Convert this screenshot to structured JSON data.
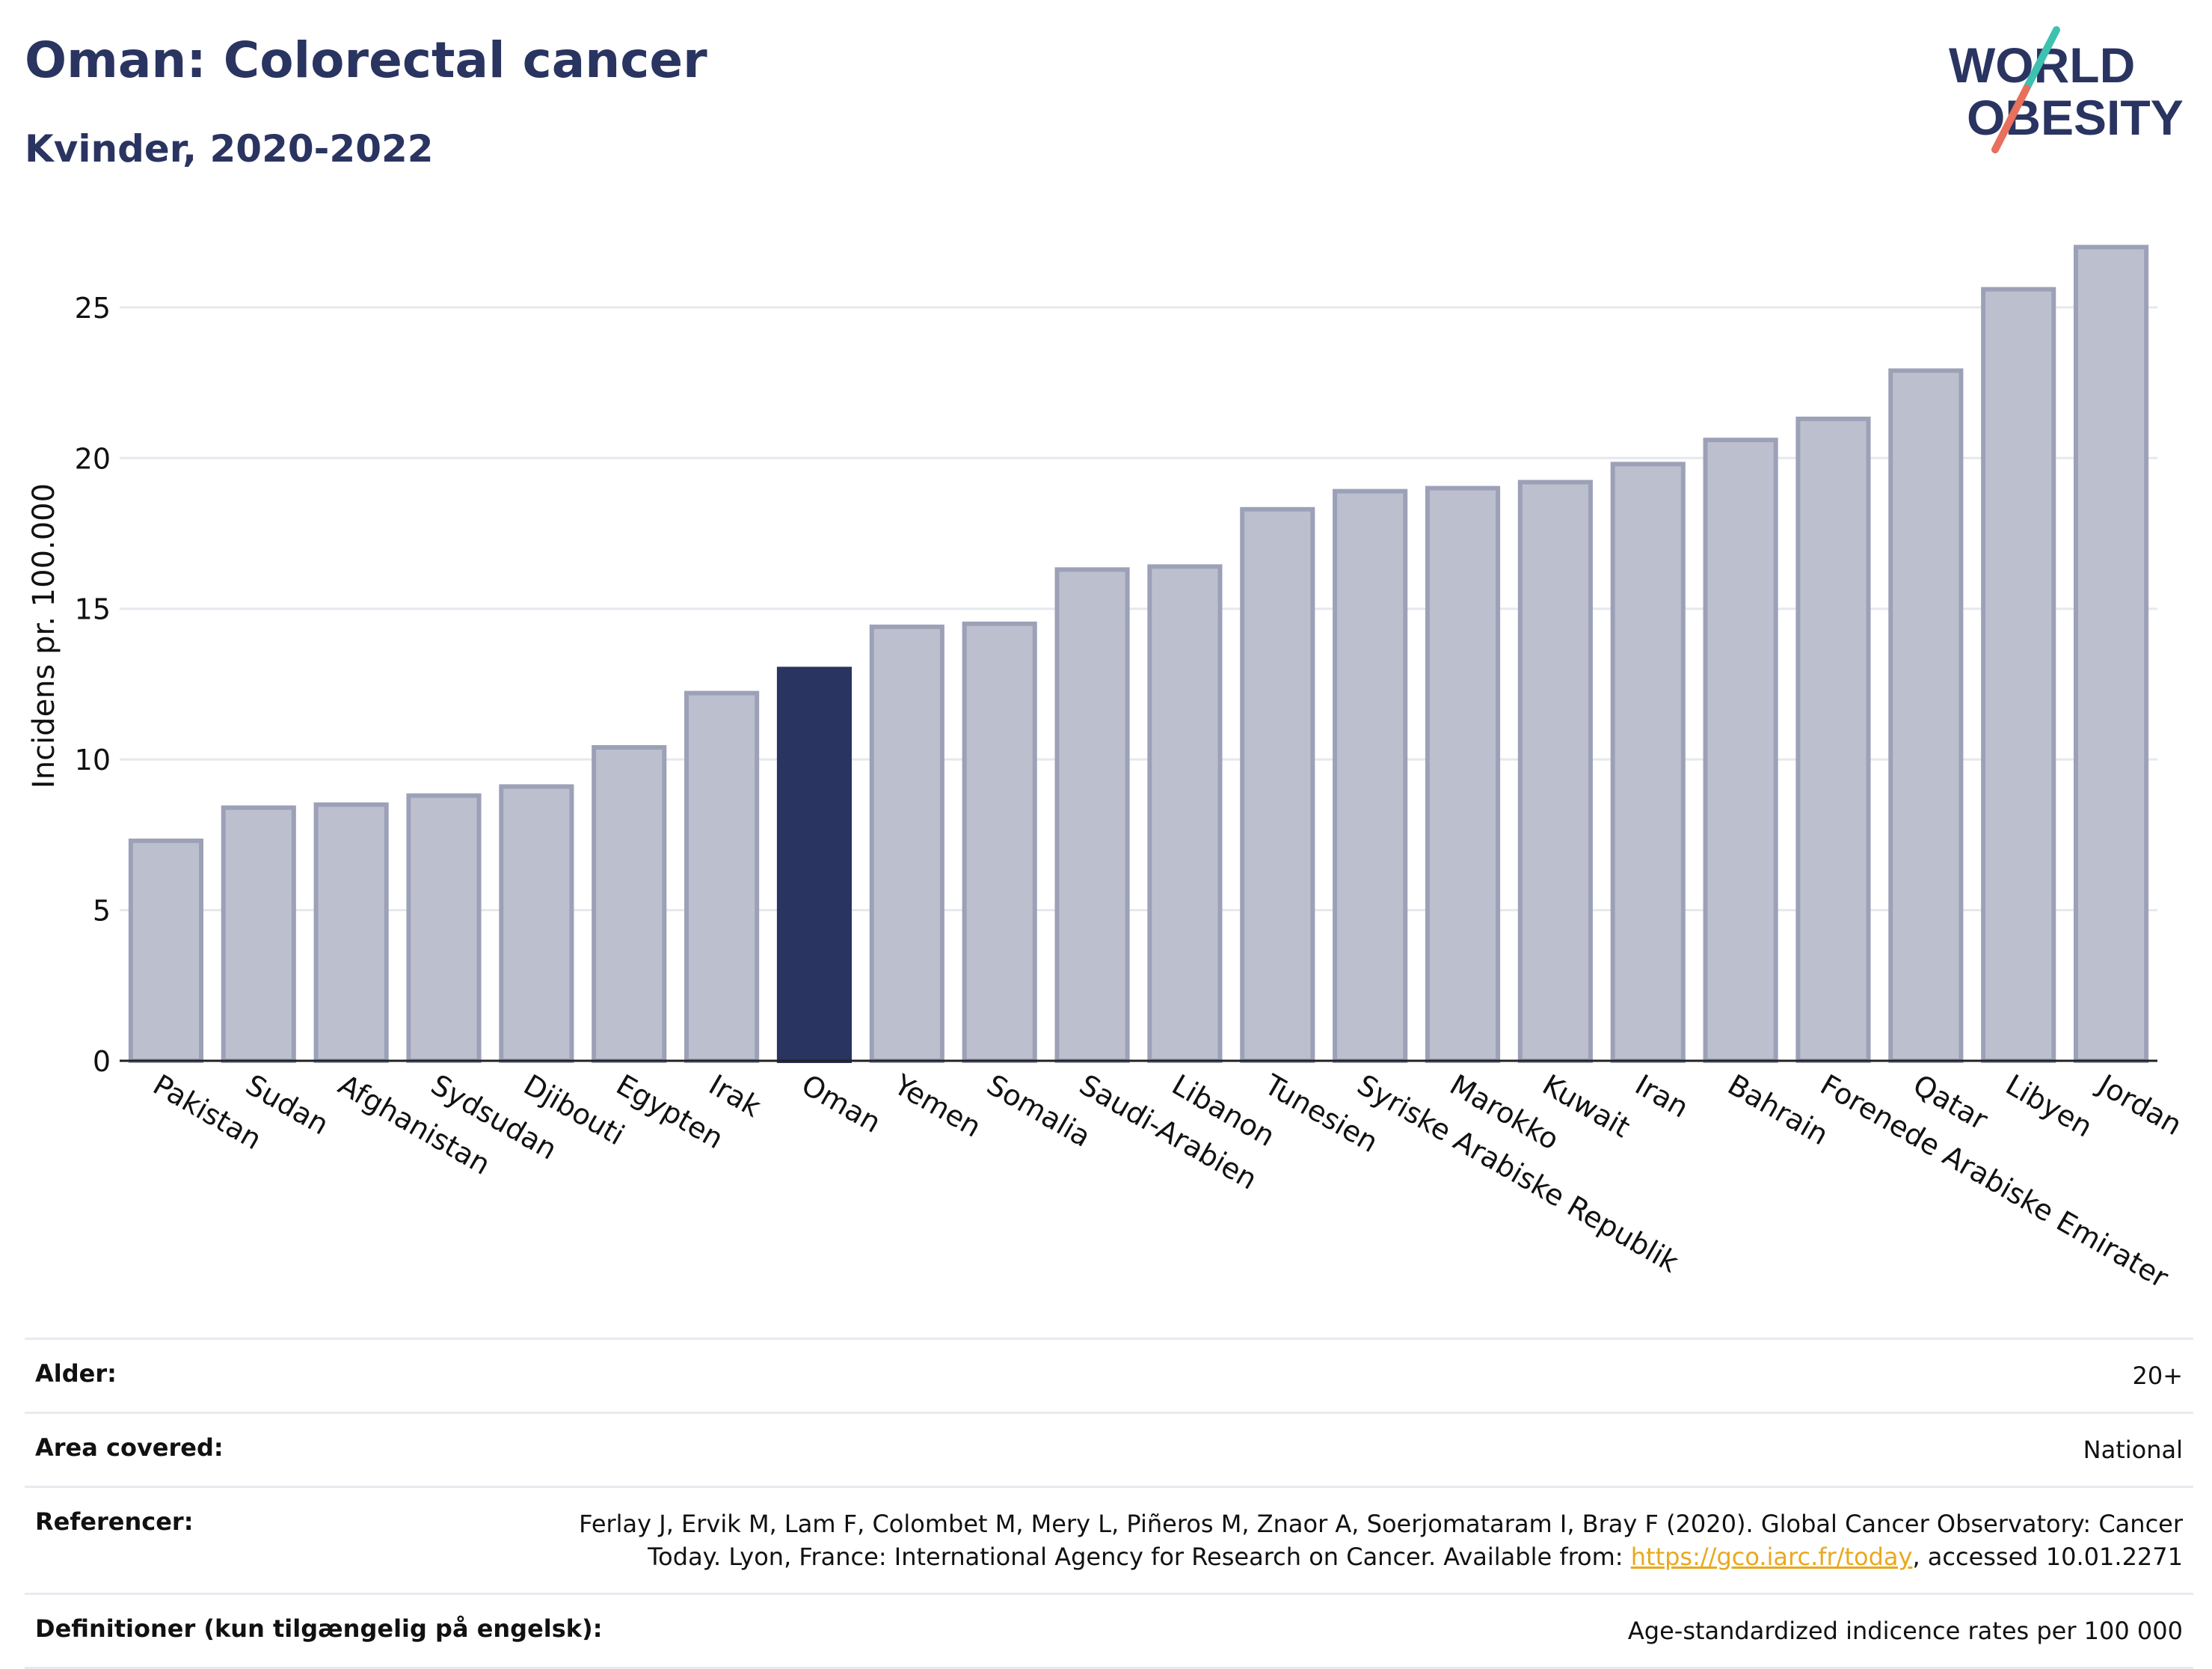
{
  "header": {
    "title": "Oman: Colorectal cancer",
    "subtitle": "Kvinder, 2020-2022"
  },
  "logo": {
    "line1": "WORLD",
    "line2": "OBESITY",
    "accent_colors": [
      "#3ec1b0",
      "#e8705d"
    ]
  },
  "chart_data": {
    "type": "bar",
    "ylabel": "Incidens pr. 100.000",
    "ylim": [
      0,
      28
    ],
    "yticks": [
      0,
      5,
      10,
      15,
      20,
      25
    ],
    "grid": true,
    "highlight": "Oman",
    "colors": {
      "bar": "#bcc0ce",
      "bar_edge": "#9ca1b8",
      "highlight": "#2a3461"
    },
    "categories": [
      "Pakistan",
      "Sudan",
      "Afghanistan",
      "Sydsudan",
      "Djibouti",
      "Egypten",
      "Irak",
      "Oman",
      "Yemen",
      "Somalia",
      "Saudi-Arabien",
      "Libanon",
      "Tunesien",
      "Syriske Arabiske Republik",
      "Marokko",
      "Kuwait",
      "Iran",
      "Bahrain",
      "Forenede Arabiske Emirater",
      "Qatar",
      "Libyen",
      "Jordan"
    ],
    "values": [
      7.3,
      8.4,
      8.5,
      8.8,
      9.1,
      10.4,
      12.2,
      13.0,
      14.4,
      14.5,
      16.3,
      16.4,
      18.3,
      18.9,
      19.0,
      19.2,
      19.8,
      20.6,
      21.3,
      22.9,
      25.6,
      27.0
    ]
  },
  "meta": {
    "rows": [
      {
        "label": "Alder:",
        "value": "20+"
      },
      {
        "label": "Area covered:",
        "value": "National"
      },
      {
        "label": "Referencer:",
        "value_pre": "Ferlay J, Ervik M, Lam F, Colombet M, Mery L, Piñeros M, Znaor A, Soerjomataram I, Bray F (2020). Global Cancer Observatory: Cancer Today. Lyon, France: International Agency for Research on Cancer. Available from: ",
        "link": "https://gco.iarc.fr/today",
        "value_post": ", accessed 10.01.2271"
      },
      {
        "label": "Definitioner (kun tilgængelig på engelsk):",
        "value": "Age-standardized indicence rates per 100 000"
      }
    ]
  }
}
